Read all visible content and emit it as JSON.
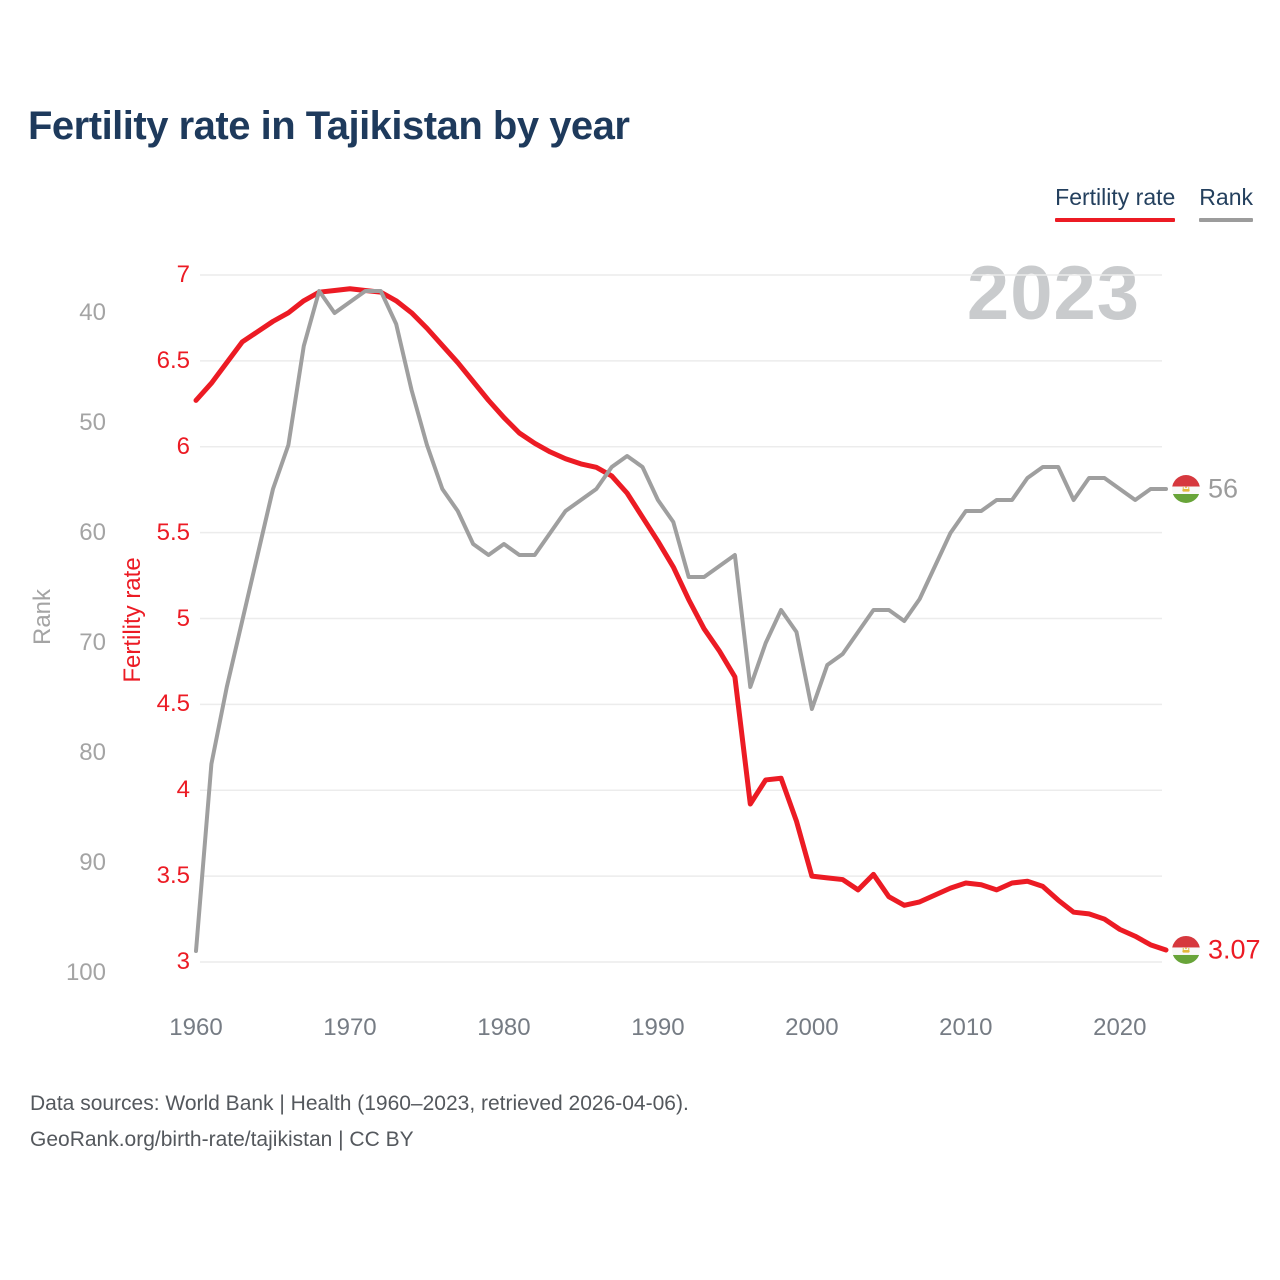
{
  "title": "Fertility rate in Tajikistan by year",
  "watermark": "2023",
  "legend": {
    "items": [
      {
        "label": "Fertility rate",
        "color": "#ec1b24"
      },
      {
        "label": "Rank",
        "color": "#9c9c9c"
      }
    ]
  },
  "end_labels": {
    "fertility": "3.07",
    "rank": "56"
  },
  "footer": {
    "line1": "Data sources: World Bank | Health (1960–2023, retrieved 2026-04-06).",
    "line2": "GeoRank.org/birth-rate/tajikistan | CC BY"
  },
  "colors": {
    "fertility_line": "#ec1b24",
    "rank_line": "#9f9f9f",
    "grid": "#ececec",
    "title": "#1e3a5c",
    "watermark": "#c9cbcd",
    "flag_red": "#d6383e",
    "flag_green": "#68a439",
    "flag_gold": "#e3b83a"
  },
  "chart_data": {
    "type": "line",
    "x": [
      1960,
      1961,
      1962,
      1963,
      1964,
      1965,
      1966,
      1967,
      1968,
      1969,
      1970,
      1971,
      1972,
      1973,
      1974,
      1975,
      1976,
      1977,
      1978,
      1979,
      1980,
      1981,
      1982,
      1983,
      1984,
      1985,
      1986,
      1987,
      1988,
      1989,
      1990,
      1991,
      1992,
      1993,
      1994,
      1995,
      1996,
      1997,
      1998,
      1999,
      2000,
      2001,
      2002,
      2003,
      2004,
      2005,
      2006,
      2007,
      2008,
      2009,
      2010,
      2011,
      2012,
      2013,
      2014,
      2015,
      2016,
      2017,
      2018,
      2019,
      2020,
      2021,
      2022,
      2023
    ],
    "series": [
      {
        "name": "Fertility rate",
        "color": "#ec1b24",
        "values": [
          6.27,
          6.37,
          6.49,
          6.61,
          6.67,
          6.73,
          6.78,
          6.85,
          6.9,
          6.91,
          6.92,
          6.91,
          6.9,
          6.85,
          6.78,
          6.69,
          6.59,
          6.49,
          6.38,
          6.27,
          6.17,
          6.08,
          6.02,
          5.97,
          5.93,
          5.9,
          5.88,
          5.83,
          5.73,
          5.59,
          5.45,
          5.3,
          5.11,
          4.94,
          4.81,
          4.66,
          3.92,
          4.06,
          4.07,
          3.82,
          3.5,
          3.49,
          3.48,
          3.42,
          3.51,
          3.38,
          3.33,
          3.35,
          3.39,
          3.43,
          3.46,
          3.45,
          3.42,
          3.46,
          3.47,
          3.44,
          3.36,
          3.29,
          3.28,
          3.25,
          3.19,
          3.15,
          3.1,
          3.07
        ]
      },
      {
        "name": "Rank",
        "color": "#9f9f9f",
        "values": [
          98,
          81,
          74,
          68,
          62,
          56,
          52,
          43,
          38,
          40,
          39,
          38,
          38,
          41,
          47,
          52,
          56,
          58,
          61,
          62,
          61,
          62,
          62,
          60,
          58,
          57,
          56,
          54,
          53,
          54,
          57,
          59,
          64,
          64,
          63,
          62,
          74,
          70,
          67,
          69,
          76,
          72,
          71,
          69,
          67,
          67,
          68,
          66,
          63,
          60,
          58,
          58,
          57,
          57,
          55,
          54,
          54,
          57,
          55,
          55,
          56,
          57,
          56,
          56
        ]
      }
    ],
    "left_axis": {
      "label": "Fertility rate",
      "ticks": [
        "7",
        "6.5",
        "6",
        "5.5",
        "5",
        "4.5",
        "4",
        "3.5",
        "3"
      ],
      "range": [
        3,
        7
      ]
    },
    "outer_left_axis": {
      "label": "Rank",
      "ticks": [
        "40",
        "50",
        "60",
        "70",
        "80",
        "90",
        "100"
      ],
      "range": [
        40,
        100
      ],
      "inverted": true
    },
    "x_axis": {
      "ticks": [
        "1960",
        "1970",
        "1980",
        "1990",
        "2000",
        "2010",
        "2020"
      ],
      "range": [
        1960,
        2023
      ]
    },
    "grid": "horizontal",
    "legend_position": "top-right"
  }
}
